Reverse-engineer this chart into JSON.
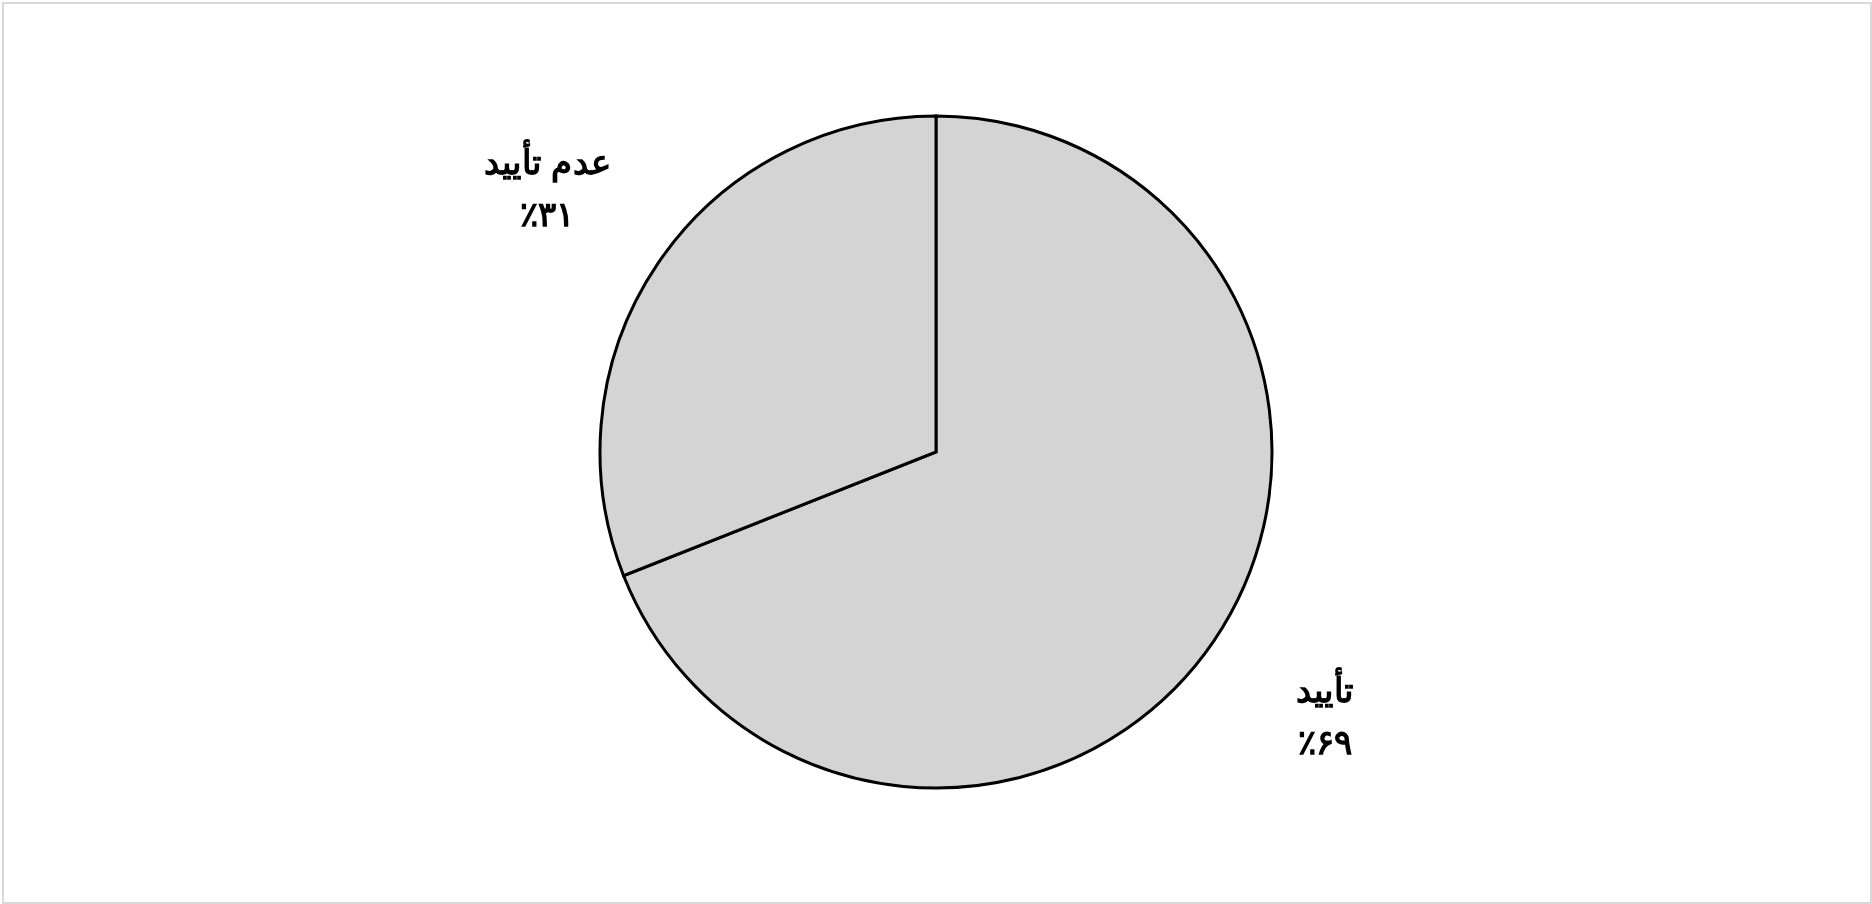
{
  "chart_data": {
    "type": "pie",
    "categories": [
      "تأیید",
      "عدم تأیید"
    ],
    "values": [
      69,
      31
    ],
    "colors": [
      "#d4d4d4",
      "#d4d4d4"
    ],
    "value_labels": [
      "٪۶۹",
      "٪۳۱"
    ]
  }
}
